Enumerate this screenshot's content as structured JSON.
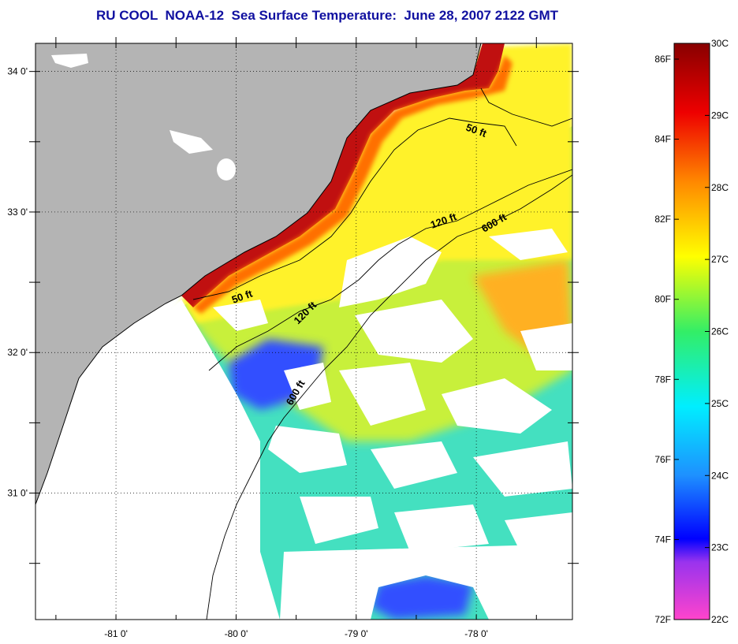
{
  "title": "RU COOL  NOAA-12  Sea Surface Temperature:  June 28, 2007 2122 GMT",
  "map": {
    "lat_ticks": [
      {
        "value": 34,
        "label": "34 0'"
      },
      {
        "value": 33.5,
        "label": ""
      },
      {
        "value": 33,
        "label": "33 0'"
      },
      {
        "value": 32.5,
        "label": ""
      },
      {
        "value": 32,
        "label": "32 0'"
      },
      {
        "value": 31.5,
        "label": ""
      },
      {
        "value": 31,
        "label": "31 0'"
      },
      {
        "value": 30.5,
        "label": ""
      }
    ],
    "lon_ticks": [
      {
        "value": -81.5,
        "label": ""
      },
      {
        "value": -81,
        "label": "-81 0'"
      },
      {
        "value": -80.5,
        "label": ""
      },
      {
        "value": -80,
        "label": "-80 0'"
      },
      {
        "value": -79.5,
        "label": ""
      },
      {
        "value": -79,
        "label": "-79 0'"
      },
      {
        "value": -78.5,
        "label": ""
      },
      {
        "value": -78,
        "label": "-78 0'"
      },
      {
        "value": -77.5,
        "label": ""
      }
    ],
    "contours": [
      {
        "label": "50 ft"
      },
      {
        "label": "120 ft"
      },
      {
        "label": "600 ft"
      },
      {
        "label": "50 ft"
      },
      {
        "label": "120 ft"
      },
      {
        "label": "600 ft"
      }
    ],
    "colors": {
      "land": "#b4b4b4",
      "clouds": "#ffffff",
      "coast_hot": "#b00000",
      "shelf_warm": "#fff22a",
      "mid_shelf": "#c8f03a",
      "offshore": "#44e0c0",
      "cold": "#3050ff"
    }
  },
  "colorbar": {
    "stops": [
      {
        "t": 0.0,
        "color": "#ff44cc"
      },
      {
        "t": 0.1,
        "color": "#9933ee"
      },
      {
        "t": 0.14,
        "color": "#0000ff"
      },
      {
        "t": 0.25,
        "color": "#1e90ff"
      },
      {
        "t": 0.37,
        "color": "#00eeff"
      },
      {
        "t": 0.5,
        "color": "#33ee66"
      },
      {
        "t": 0.63,
        "color": "#ffff00"
      },
      {
        "t": 0.76,
        "color": "#ff8800"
      },
      {
        "t": 0.88,
        "color": "#ee0000"
      },
      {
        "t": 1.0,
        "color": "#880000"
      }
    ],
    "fahrenheit_labels": [
      "86F",
      "84F",
      "82F",
      "80F",
      "78F",
      "76F",
      "74F",
      "72F"
    ],
    "celsius_labels": [
      "30C",
      "29C",
      "28C",
      "27C",
      "26C",
      "25C",
      "24C",
      "23C",
      "22C"
    ]
  }
}
